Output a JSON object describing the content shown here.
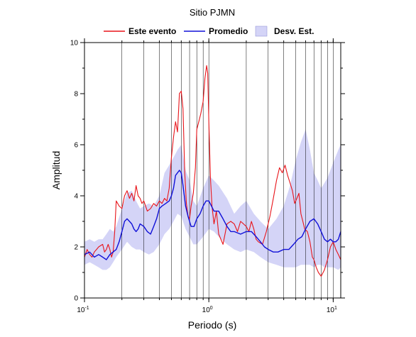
{
  "chart_data": {
    "type": "line",
    "title": "Sitio PJMN",
    "xlabel": "Periodo (s)",
    "ylabel": "Amplitud",
    "x_scale": "log",
    "xlim": [
      0.1,
      11.5
    ],
    "ylim": [
      0,
      10
    ],
    "x_ticks": [
      {
        "value": 0.1,
        "base": "10",
        "exp": "-1"
      },
      {
        "value": 1,
        "base": "10",
        "exp": "0"
      },
      {
        "value": 10,
        "base": "10",
        "exp": "1"
      }
    ],
    "y_ticks": [
      "0",
      "2",
      "4",
      "6",
      "8",
      "10"
    ],
    "grid": "vertical log gridlines",
    "legend_position": "top",
    "legend": [
      {
        "label": "Este evento",
        "color": "#e8141a",
        "kind": "line"
      },
      {
        "label": "Promedio",
        "color": "#1010d8",
        "kind": "line"
      },
      {
        "label": "Desv. Est.",
        "color": "#d4d4f7",
        "kind": "band"
      }
    ],
    "colors": {
      "event": "#e8141a",
      "mean": "#1010d8",
      "band": "#d4d4f7"
    },
    "series": [
      {
        "name": "Este evento",
        "x": [
          0.1,
          0.105,
          0.11,
          0.115,
          0.12,
          0.125,
          0.13,
          0.14,
          0.145,
          0.15,
          0.155,
          0.16,
          0.165,
          0.17,
          0.175,
          0.18,
          0.19,
          0.2,
          0.21,
          0.22,
          0.23,
          0.24,
          0.25,
          0.26,
          0.27,
          0.28,
          0.29,
          0.3,
          0.31,
          0.32,
          0.34,
          0.36,
          0.38,
          0.4,
          0.42,
          0.44,
          0.46,
          0.48,
          0.5,
          0.52,
          0.54,
          0.56,
          0.58,
          0.6,
          0.62,
          0.64,
          0.66,
          0.68,
          0.7,
          0.72,
          0.75,
          0.78,
          0.8,
          0.83,
          0.86,
          0.9,
          0.93,
          0.96,
          0.98,
          1.0,
          1.03,
          1.06,
          1.1,
          1.15,
          1.2,
          1.3,
          1.4,
          1.5,
          1.6,
          1.7,
          1.8,
          1.9,
          2.0,
          2.1,
          2.2,
          2.3,
          2.4,
          2.5,
          2.7,
          2.9,
          3.1,
          3.3,
          3.5,
          3.7,
          3.9,
          4.1,
          4.3,
          4.5,
          4.7,
          4.9,
          5.1,
          5.3,
          5.5,
          5.7,
          5.9,
          6.2,
          6.5,
          6.8,
          7.0,
          7.3,
          7.6,
          8.0,
          8.5,
          9.0,
          9.5,
          10.0,
          10.5,
          11.0,
          11.5
        ],
        "values": [
          1.6,
          1.9,
          1.7,
          1.6,
          1.8,
          1.9,
          2.0,
          2.1,
          1.8,
          1.9,
          2.1,
          1.9,
          1.6,
          1.8,
          2.6,
          3.8,
          3.6,
          3.5,
          4.0,
          4.2,
          3.9,
          4.1,
          3.8,
          4.4,
          4.0,
          3.9,
          3.7,
          3.8,
          3.6,
          3.4,
          3.5,
          3.7,
          3.6,
          3.8,
          3.7,
          3.9,
          3.8,
          4.3,
          5.5,
          6.3,
          6.9,
          6.5,
          8.0,
          8.1,
          7.4,
          4.9,
          3.7,
          3.2,
          3.1,
          3.6,
          4.1,
          5.1,
          6.6,
          6.9,
          7.2,
          7.7,
          8.6,
          9.1,
          8.8,
          6.9,
          4.7,
          3.6,
          2.9,
          3.4,
          2.5,
          2.1,
          2.9,
          3.0,
          2.9,
          2.6,
          3.0,
          2.9,
          2.8,
          2.6,
          3.0,
          2.7,
          2.3,
          2.2,
          2.1,
          2.6,
          3.2,
          3.9,
          4.6,
          5.1,
          4.9,
          5.2,
          4.8,
          4.5,
          4.2,
          3.7,
          3.9,
          4.1,
          3.3,
          3.0,
          2.7,
          2.6,
          2.2,
          1.6,
          1.5,
          1.2,
          1.0,
          0.85,
          1.1,
          1.5,
          2.0,
          2.2,
          1.9,
          1.7,
          1.5
        ]
      },
      {
        "name": "Promedio",
        "x": [
          0.1,
          0.11,
          0.12,
          0.13,
          0.14,
          0.15,
          0.16,
          0.17,
          0.18,
          0.19,
          0.2,
          0.21,
          0.22,
          0.23,
          0.24,
          0.25,
          0.26,
          0.27,
          0.28,
          0.3,
          0.32,
          0.34,
          0.36,
          0.38,
          0.4,
          0.42,
          0.45,
          0.48,
          0.5,
          0.52,
          0.54,
          0.56,
          0.58,
          0.6,
          0.62,
          0.65,
          0.68,
          0.72,
          0.76,
          0.8,
          0.85,
          0.9,
          0.95,
          1.0,
          1.05,
          1.1,
          1.2,
          1.3,
          1.4,
          1.5,
          1.6,
          1.8,
          2.0,
          2.2,
          2.4,
          2.6,
          2.8,
          3.0,
          3.3,
          3.6,
          4.0,
          4.4,
          4.8,
          5.2,
          5.6,
          6.0,
          6.5,
          7.0,
          7.5,
          8.0,
          8.5,
          9.0,
          9.5,
          10.0,
          10.5,
          11.0,
          11.5
        ],
        "values": [
          1.7,
          1.8,
          1.6,
          1.7,
          1.6,
          1.5,
          1.7,
          1.8,
          1.9,
          2.2,
          2.6,
          3.0,
          3.1,
          3.0,
          2.9,
          2.7,
          2.6,
          2.7,
          2.9,
          2.8,
          2.6,
          2.5,
          2.8,
          3.1,
          3.5,
          3.6,
          3.7,
          3.8,
          4.0,
          4.3,
          4.8,
          4.9,
          5.0,
          4.9,
          4.4,
          3.6,
          3.2,
          2.8,
          2.8,
          3.1,
          3.3,
          3.6,
          3.8,
          3.8,
          3.6,
          3.4,
          3.4,
          3.1,
          2.8,
          2.6,
          2.6,
          2.5,
          2.6,
          2.6,
          2.4,
          2.2,
          2.0,
          1.9,
          1.8,
          1.8,
          1.9,
          1.9,
          2.1,
          2.3,
          2.4,
          2.7,
          3.0,
          3.1,
          2.9,
          2.6,
          2.3,
          2.2,
          2.3,
          2.2,
          2.2,
          2.3,
          2.6
        ]
      },
      {
        "name": "Desv. Est.",
        "x": [
          0.1,
          0.11,
          0.12,
          0.13,
          0.14,
          0.15,
          0.16,
          0.17,
          0.18,
          0.2,
          0.22,
          0.24,
          0.26,
          0.28,
          0.3,
          0.33,
          0.36,
          0.4,
          0.44,
          0.48,
          0.52,
          0.56,
          0.6,
          0.65,
          0.7,
          0.75,
          0.8,
          0.9,
          1.0,
          1.1,
          1.2,
          1.4,
          1.6,
          1.8,
          2.0,
          2.3,
          2.6,
          3.0,
          3.5,
          4.0,
          4.5,
          5.0,
          5.5,
          6.0,
          6.5,
          7.0,
          7.5,
          8.0,
          8.5,
          9.0,
          10.0,
          11.0,
          11.5
        ],
        "lower": [
          1.3,
          1.4,
          1.3,
          1.2,
          1.1,
          1.1,
          1.2,
          1.4,
          1.6,
          1.9,
          2.2,
          2.0,
          1.9,
          1.9,
          1.8,
          1.7,
          1.8,
          2.1,
          2.5,
          2.7,
          3.0,
          3.3,
          3.2,
          2.7,
          2.4,
          2.1,
          2.1,
          2.4,
          2.7,
          2.6,
          2.4,
          2.1,
          1.9,
          1.8,
          1.9,
          1.8,
          1.6,
          1.4,
          1.3,
          1.2,
          1.2,
          1.2,
          1.3,
          1.3,
          1.3,
          1.2,
          1.3,
          1.3,
          1.2,
          1.2,
          1.2,
          1.1,
          1.2
        ],
        "upper": [
          2.2,
          2.3,
          2.2,
          2.3,
          2.3,
          2.5,
          2.7,
          2.6,
          2.8,
          3.5,
          4.1,
          4.2,
          3.8,
          3.5,
          3.6,
          3.7,
          3.6,
          4.0,
          4.9,
          5.2,
          5.5,
          5.8,
          6.0,
          5.0,
          4.6,
          3.8,
          3.6,
          4.3,
          4.8,
          4.6,
          4.4,
          3.9,
          3.3,
          3.6,
          3.8,
          3.3,
          3.0,
          2.7,
          3.1,
          3.6,
          4.4,
          5.4,
          6.1,
          6.6,
          5.8,
          4.9,
          4.6,
          4.3,
          4.5,
          4.7,
          5.3,
          5.8,
          6.0
        ]
      }
    ]
  }
}
